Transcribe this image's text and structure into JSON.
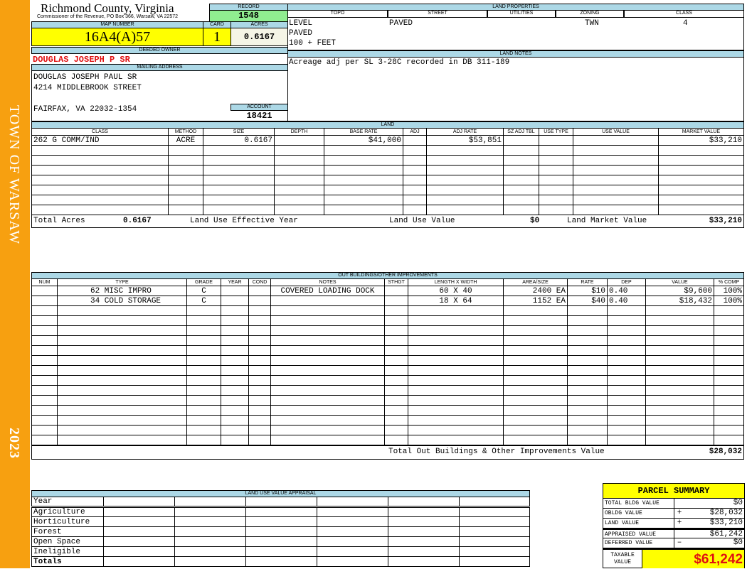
{
  "sidebar": {
    "town": "TOWN OF WARSAW",
    "year": "2023"
  },
  "header": {
    "county": "Richmond County, Virginia",
    "office": "Commissioner of the Revenue, PO Box 366, Warsaw, VA 22572",
    "record_label": "RECORD",
    "record": "1548",
    "map_label": "MAP NUMBER",
    "map": "16A4(A)57",
    "card_label": "CARD",
    "card": "1",
    "acres_label": "ACRES",
    "acres": "0.6167"
  },
  "owner": {
    "label": "DEEDED OWNER",
    "name": "DOUGLAS JOSEPH P SR",
    "mail_label": "MAILING ADDRESS",
    "line1": "DOUGLAS JOSEPH PAUL SR",
    "line2": "4214 MIDDLEBROOK STREET",
    "line3": "FAIRFAX, VA 22032-1354",
    "account_label": "ACCOUNT",
    "account": "18421"
  },
  "land_properties": {
    "title": "LAND PROPERTIES",
    "columns": [
      "TOPO",
      "STREET",
      "UTILITIES",
      "ZONING",
      "CLASS"
    ],
    "topo": [
      "LEVEL",
      "PAVED",
      "100 + FEET"
    ],
    "street": "PAVED",
    "zoning": "TWN",
    "class": "4"
  },
  "land_notes": {
    "title": "LAND NOTES",
    "text": "Acreage adj per SL 3-28C recorded in DB 311-189"
  },
  "land": {
    "title": "LAND",
    "columns": [
      "CLASS",
      "METHOD",
      "SIZE",
      "DEPTH",
      "BASE RATE",
      "ADJ",
      "ADJ RATE",
      "SZ ADJ TBL",
      "USE TYPE",
      "USE VALUE",
      "MARKET VALUE"
    ],
    "rows": [
      [
        "262 G COMM/IND",
        "ACRE",
        "0.6167",
        "",
        "$41,000",
        "",
        "$53,851",
        "",
        "",
        "",
        "$33,210"
      ]
    ],
    "total_acres_label": "Total Acres",
    "total_acres": "0.6167",
    "effective_year_label": "Land Use Effective Year",
    "use_value_label": "Land Use Value",
    "use_value": "$0",
    "market_value_label": "Land Market Value",
    "market_value": "$33,210"
  },
  "outbuildings": {
    "title": "OUT BUILDINGS/OTHER IMPROVEMENTS",
    "columns": [
      "NUM",
      "TYPE",
      "GRADE",
      "YEAR",
      "COND",
      "NOTES",
      "STHGT",
      "LENGTH X WIDTH",
      "AREA/SIZE",
      "RATE",
      "DEP",
      "VALUE",
      "% COMP"
    ],
    "rows": [
      [
        "",
        "62 MISC IMPRO",
        "C",
        "",
        "",
        "COVERED LOADING DOCK",
        "",
        "60 X 40",
        "2400 EA",
        "$10",
        "0.40",
        "$9,600",
        "100%"
      ],
      [
        "",
        "34 COLD STORAGE",
        "C",
        "",
        "",
        "",
        "",
        "18 X 64",
        "1152 EA",
        "$40",
        "0.40",
        "$18,432",
        "100%"
      ]
    ],
    "total_label": "Total Out Buildings & Other Improvements Value",
    "total": "$28,032"
  },
  "land_use": {
    "title": "LAND USE VALUE APPRAISAL",
    "year_label": "Year",
    "rows": [
      "Agriculture",
      "Horticulture",
      "Forest",
      "Open Space",
      "Ineligible",
      "Totals"
    ]
  },
  "summary": {
    "title": "PARCEL SUMMARY",
    "rows": [
      {
        "label": "TOTAL BLDG VALUE",
        "sign": "",
        "value": "$0"
      },
      {
        "label": "OBLDG VALUE",
        "sign": "+",
        "value": "$28,032"
      },
      {
        "label": "LAND VALUE",
        "sign": "+",
        "value": "$33,210"
      },
      {
        "label": "APPRAISED VALUE",
        "sign": "",
        "value": "$61,242"
      },
      {
        "label": "DEFERRED VALUE",
        "sign": "–",
        "value": "$0"
      }
    ],
    "taxable_label": "TAXABLE VALUE",
    "taxable": "$61,242"
  },
  "colors": {
    "sidebar": "#f7a010",
    "header_blue": "#acd8e6",
    "highlight": "#ffff00",
    "record_green": "#90ee90",
    "owner_red": "#e01010"
  }
}
